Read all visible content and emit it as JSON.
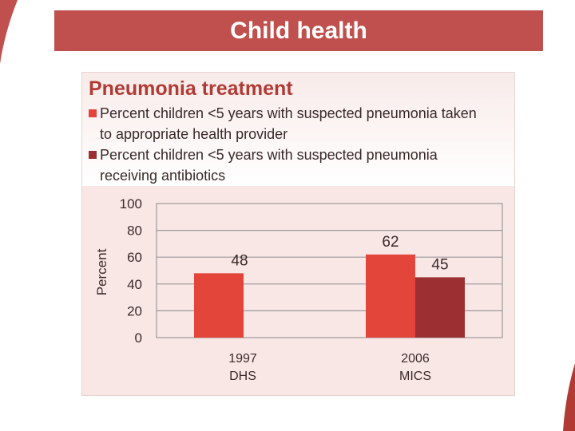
{
  "slide": {
    "title": "Child health"
  },
  "colors": {
    "header": "#c0504d",
    "accent_title": "#b23a35",
    "series_1": "#e4453a",
    "series_2": "#9b2f31"
  },
  "chart_data": {
    "type": "bar",
    "title": "Pneumonia treatment",
    "ylabel": "Percent",
    "xlabel": "",
    "ylim": [
      0,
      100
    ],
    "yticks": [
      0,
      20,
      40,
      60,
      80,
      100
    ],
    "grid": true,
    "legend_position": "top",
    "categories": [
      {
        "line1": "1997",
        "line2": "DHS"
      },
      {
        "line1": "2006",
        "line2": "MICS"
      }
    ],
    "series": [
      {
        "name": "Percent children <5 years with suspected pneumonia taken to appropriate health provider",
        "legend_line1": "Percent children <5 years with suspected pneumonia taken",
        "legend_line2": "to appropriate health provider",
        "color": "#e4453a",
        "values": [
          48,
          62
        ]
      },
      {
        "name": "Percent children <5 years with suspected pneumonia receiving antibiotics",
        "legend_line1": "Percent children <5 years with suspected pneumonia",
        "legend_line2": "receiving antibiotics",
        "color": "#9b2f31",
        "values": [
          null,
          45
        ]
      }
    ]
  }
}
